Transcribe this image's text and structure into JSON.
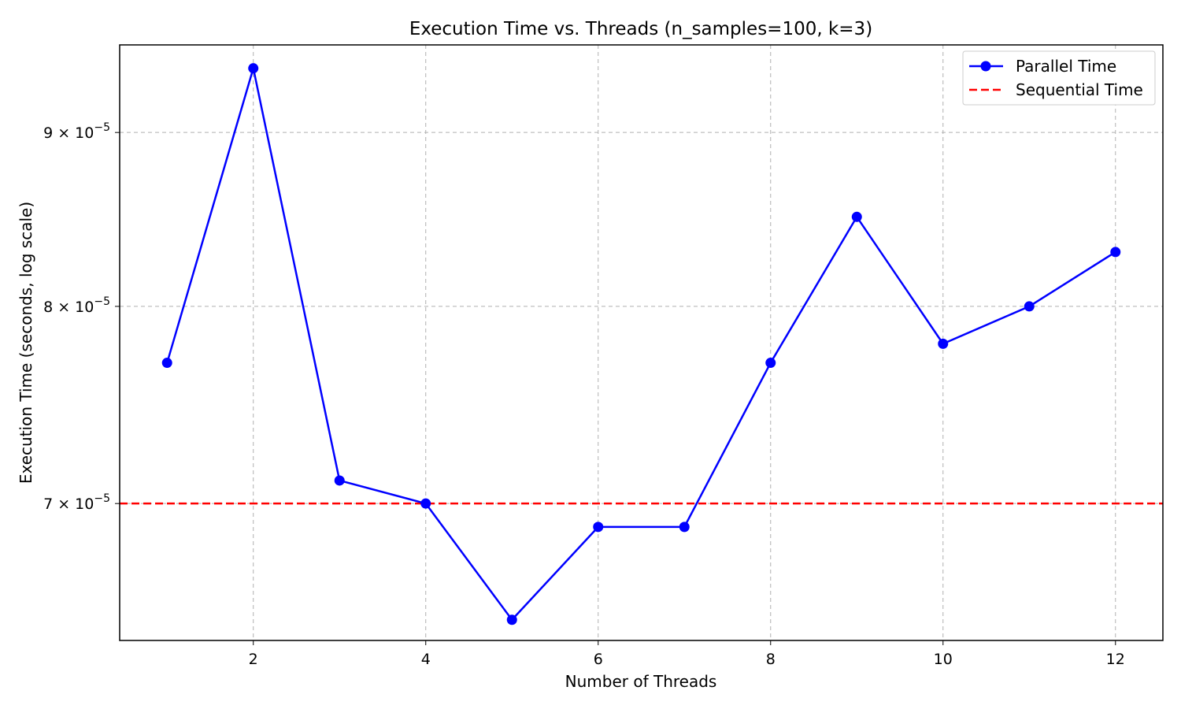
{
  "chart_data": {
    "type": "line",
    "title": "Execution Time vs. Threads (n_samples=100, k=3)",
    "xlabel": "Number of Threads",
    "ylabel": "Execution Time (seconds, log scale)",
    "y_scale": "log",
    "grid": true,
    "legend_position": "top-right",
    "xlim": [
      0.45,
      12.55
    ],
    "ylim": [
      6.38e-05,
      9.55e-05
    ],
    "x_ticks": [
      2,
      4,
      6,
      8,
      10,
      12
    ],
    "x_tick_labels": [
      "2",
      "4",
      "6",
      "8",
      "10",
      "12"
    ],
    "y_ticks": [
      {
        "value": 9e-05,
        "mantissa": "9",
        "exponent": "−5"
      },
      {
        "value": 8e-05,
        "mantissa": "8",
        "exponent": "−5"
      },
      {
        "value": 7e-05,
        "mantissa": "7",
        "exponent": "−5"
      }
    ],
    "x": [
      1,
      2,
      3,
      4,
      5,
      6,
      7,
      8,
      9,
      10,
      11,
      12
    ],
    "series": [
      {
        "name": "Parallel Time",
        "style": "solid-line-with-markers",
        "color": "#0000ff",
        "values": [
          7.7e-05,
          9.4e-05,
          7.11e-05,
          7e-05,
          6.47e-05,
          6.89e-05,
          6.89e-05,
          7.7e-05,
          8.5e-05,
          7.8e-05,
          8e-05,
          8.3e-05
        ]
      },
      {
        "name": "Sequential Time",
        "style": "dashed-horizontal-line",
        "color": "#ff0000",
        "value": 7e-05
      }
    ]
  }
}
